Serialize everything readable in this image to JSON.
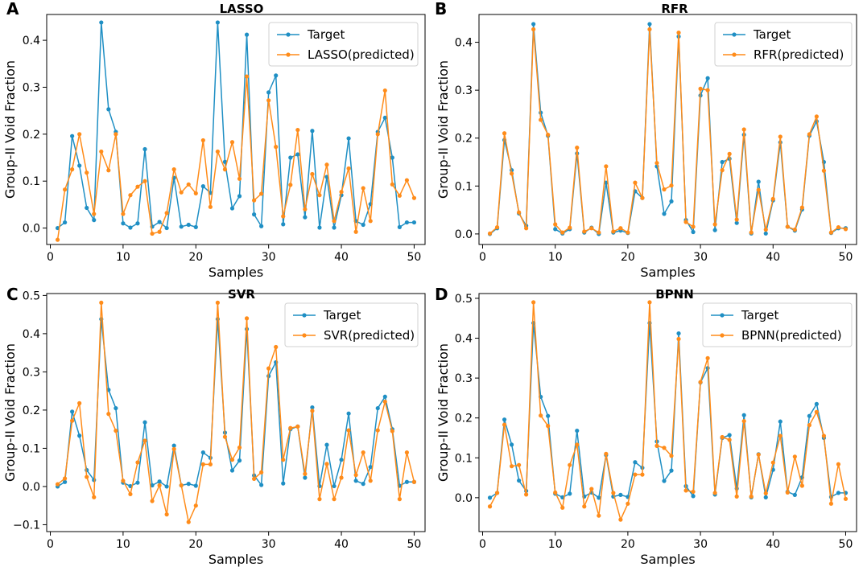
{
  "colors": {
    "target": "#1f8fc4",
    "predicted": "#ff8c1a"
  },
  "chart_data": [
    {
      "type": "line",
      "letter": "A",
      "title": "LASSO",
      "xlabel": "Samples",
      "ylabel": "Group-II Void Fraction",
      "xlim": [
        -0.5,
        51.5
      ],
      "ylim": [
        -0.035,
        0.455
      ],
      "xticks": [
        0,
        10,
        20,
        30,
        40,
        50
      ],
      "yticks": [
        0.0,
        0.1,
        0.2,
        0.3,
        0.4
      ],
      "ytick_labels": [
        "0.0",
        "0.1",
        "0.2",
        "0.3",
        "0.4"
      ],
      "legend_position": "top-right",
      "series": [
        {
          "name": "Target",
          "x": [
            1,
            2,
            3,
            4,
            5,
            6,
            7,
            8,
            9,
            10,
            11,
            12,
            13,
            14,
            15,
            16,
            17,
            18,
            19,
            20,
            21,
            22,
            23,
            24,
            25,
            26,
            27,
            28,
            29,
            30,
            31,
            32,
            33,
            34,
            35,
            36,
            37,
            38,
            39,
            40,
            41,
            42,
            43,
            44,
            45,
            46,
            47,
            48,
            49,
            50
          ],
          "values": [
            0.0,
            0.012,
            0.196,
            0.133,
            0.043,
            0.017,
            0.438,
            0.253,
            0.205,
            0.01,
            0.001,
            0.01,
            0.168,
            0.003,
            0.013,
            0.0,
            0.107,
            0.003,
            0.007,
            0.002,
            0.089,
            0.075,
            0.438,
            0.141,
            0.042,
            0.068,
            0.412,
            0.029,
            0.004,
            0.289,
            0.325,
            0.008,
            0.15,
            0.157,
            0.023,
            0.207,
            0.001,
            0.109,
            0.001,
            0.07,
            0.191,
            0.015,
            0.007,
            0.051,
            0.205,
            0.235,
            0.15,
            0.002,
            0.012,
            0.012
          ]
        },
        {
          "name": "LASSO(predicted)",
          "x": [
            1,
            2,
            3,
            4,
            5,
            6,
            7,
            8,
            9,
            10,
            11,
            12,
            13,
            14,
            15,
            16,
            17,
            18,
            19,
            20,
            21,
            22,
            23,
            24,
            25,
            26,
            27,
            28,
            29,
            30,
            31,
            32,
            33,
            34,
            35,
            36,
            37,
            38,
            39,
            40,
            41,
            42,
            43,
            44,
            45,
            46,
            47,
            48,
            49,
            50
          ],
          "values": [
            -0.025,
            0.082,
            0.125,
            0.2,
            0.118,
            0.03,
            0.163,
            0.123,
            0.2,
            0.03,
            0.07,
            0.088,
            0.1,
            -0.012,
            -0.008,
            0.032,
            0.125,
            0.076,
            0.093,
            0.074,
            0.187,
            0.045,
            0.163,
            0.125,
            0.183,
            0.105,
            0.323,
            0.059,
            0.073,
            0.272,
            0.173,
            0.025,
            0.092,
            0.209,
            0.04,
            0.115,
            0.07,
            0.135,
            0.015,
            0.077,
            0.127,
            -0.008,
            0.085,
            0.015,
            0.2,
            0.293,
            0.093,
            0.069,
            0.102,
            0.064
          ]
        }
      ]
    },
    {
      "type": "line",
      "letter": "B",
      "title": "RFR",
      "xlabel": "Samples",
      "ylabel": "Group-II Void Fraction",
      "xlim": [
        -0.5,
        51.5
      ],
      "ylim": [
        -0.022,
        0.458
      ],
      "xticks": [
        0,
        10,
        20,
        30,
        40,
        50
      ],
      "yticks": [
        0.0,
        0.1,
        0.2,
        0.3,
        0.4
      ],
      "ytick_labels": [
        "0.0",
        "0.1",
        "0.2",
        "0.3",
        "0.4"
      ],
      "legend_position": "top-right",
      "series": [
        {
          "name": "Target",
          "x": [
            1,
            2,
            3,
            4,
            5,
            6,
            7,
            8,
            9,
            10,
            11,
            12,
            13,
            14,
            15,
            16,
            17,
            18,
            19,
            20,
            21,
            22,
            23,
            24,
            25,
            26,
            27,
            28,
            29,
            30,
            31,
            32,
            33,
            34,
            35,
            36,
            37,
            38,
            39,
            40,
            41,
            42,
            43,
            44,
            45,
            46,
            47,
            48,
            49,
            50
          ],
          "values": [
            0.0,
            0.012,
            0.196,
            0.133,
            0.043,
            0.017,
            0.438,
            0.253,
            0.205,
            0.01,
            0.001,
            0.01,
            0.168,
            0.003,
            0.013,
            0.0,
            0.107,
            0.003,
            0.007,
            0.002,
            0.089,
            0.075,
            0.438,
            0.141,
            0.042,
            0.068,
            0.412,
            0.029,
            0.004,
            0.289,
            0.325,
            0.008,
            0.15,
            0.157,
            0.023,
            0.207,
            0.001,
            0.109,
            0.001,
            0.07,
            0.191,
            0.015,
            0.007,
            0.051,
            0.205,
            0.235,
            0.15,
            0.002,
            0.012,
            0.012
          ]
        },
        {
          "name": "RFR(predicted)",
          "x": [
            1,
            2,
            3,
            4,
            5,
            6,
            7,
            8,
            9,
            10,
            11,
            12,
            13,
            14,
            15,
            16,
            17,
            18,
            19,
            20,
            21,
            22,
            23,
            24,
            25,
            26,
            27,
            28,
            29,
            30,
            31,
            32,
            33,
            34,
            35,
            36,
            37,
            38,
            39,
            40,
            41,
            42,
            43,
            44,
            45,
            46,
            47,
            48,
            49,
            50
          ],
          "values": [
            0.001,
            0.014,
            0.21,
            0.126,
            0.045,
            0.012,
            0.427,
            0.238,
            0.207,
            0.02,
            0.003,
            0.013,
            0.18,
            0.005,
            0.012,
            0.003,
            0.141,
            0.005,
            0.012,
            0.003,
            0.107,
            0.075,
            0.427,
            0.148,
            0.093,
            0.101,
            0.42,
            0.025,
            0.015,
            0.303,
            0.3,
            0.02,
            0.133,
            0.167,
            0.03,
            0.218,
            0.003,
            0.092,
            0.009,
            0.073,
            0.203,
            0.015,
            0.009,
            0.055,
            0.208,
            0.245,
            0.132,
            0.003,
            0.014,
            0.01
          ]
        }
      ]
    },
    {
      "type": "line",
      "letter": "C",
      "title": "SVR",
      "xlabel": "Samples",
      "ylabel": "Group-II Void Fraction",
      "xlim": [
        -0.5,
        51.5
      ],
      "ylim": [
        -0.118,
        0.505
      ],
      "xticks": [
        0,
        10,
        20,
        30,
        40,
        50
      ],
      "yticks": [
        -0.1,
        0.0,
        0.1,
        0.2,
        0.3,
        0.4,
        0.5
      ],
      "ytick_labels": [
        "−0.1",
        "0.0",
        "0.1",
        "0.2",
        "0.3",
        "0.4",
        "0.5"
      ],
      "legend_position": "top-right",
      "series": [
        {
          "name": "Target",
          "x": [
            1,
            2,
            3,
            4,
            5,
            6,
            7,
            8,
            9,
            10,
            11,
            12,
            13,
            14,
            15,
            16,
            17,
            18,
            19,
            20,
            21,
            22,
            23,
            24,
            25,
            26,
            27,
            28,
            29,
            30,
            31,
            32,
            33,
            34,
            35,
            36,
            37,
            38,
            39,
            40,
            41,
            42,
            43,
            44,
            45,
            46,
            47,
            48,
            49,
            50
          ],
          "values": [
            0.0,
            0.012,
            0.196,
            0.133,
            0.043,
            0.017,
            0.438,
            0.253,
            0.205,
            0.01,
            0.001,
            0.01,
            0.168,
            0.003,
            0.013,
            0.0,
            0.107,
            0.003,
            0.007,
            0.002,
            0.089,
            0.075,
            0.438,
            0.141,
            0.042,
            0.068,
            0.412,
            0.029,
            0.004,
            0.289,
            0.325,
            0.008,
            0.15,
            0.157,
            0.023,
            0.207,
            0.001,
            0.109,
            0.001,
            0.07,
            0.191,
            0.015,
            0.007,
            0.051,
            0.205,
            0.235,
            0.15,
            0.002,
            0.012,
            0.012
          ]
        },
        {
          "name": "SVR(predicted)",
          "x": [
            1,
            2,
            3,
            4,
            5,
            6,
            7,
            8,
            9,
            10,
            11,
            12,
            13,
            14,
            15,
            16,
            17,
            18,
            19,
            20,
            21,
            22,
            23,
            24,
            25,
            26,
            27,
            28,
            29,
            30,
            31,
            32,
            33,
            34,
            35,
            36,
            37,
            38,
            39,
            40,
            41,
            42,
            43,
            44,
            45,
            46,
            47,
            48,
            49,
            50
          ],
          "values": [
            0.006,
            0.021,
            0.172,
            0.218,
            0.025,
            -0.028,
            0.481,
            0.19,
            0.146,
            0.015,
            -0.02,
            0.063,
            0.12,
            -0.038,
            0.003,
            -0.073,
            0.098,
            0.003,
            -0.093,
            -0.05,
            0.058,
            0.058,
            0.481,
            0.13,
            0.07,
            0.102,
            0.44,
            0.02,
            0.037,
            0.309,
            0.365,
            0.07,
            0.153,
            0.157,
            0.033,
            0.198,
            -0.033,
            0.059,
            -0.033,
            0.023,
            0.147,
            0.03,
            0.089,
            0.015,
            0.147,
            0.222,
            0.145,
            -0.033,
            0.089,
            0.012
          ]
        }
      ]
    },
    {
      "type": "line",
      "letter": "D",
      "title": "BPNN",
      "xlabel": "Samples",
      "ylabel": "Group-II Void Fraction",
      "xlim": [
        -0.5,
        51.5
      ],
      "ylim": [
        -0.085,
        0.512
      ],
      "xticks": [
        0,
        10,
        20,
        30,
        40,
        50
      ],
      "yticks": [
        0.0,
        0.1,
        0.2,
        0.3,
        0.4,
        0.5
      ],
      "ytick_labels": [
        "0.0",
        "0.1",
        "0.2",
        "0.3",
        "0.4",
        "0.5"
      ],
      "legend_position": "top-right",
      "series": [
        {
          "name": "Target",
          "x": [
            1,
            2,
            3,
            4,
            5,
            6,
            7,
            8,
            9,
            10,
            11,
            12,
            13,
            14,
            15,
            16,
            17,
            18,
            19,
            20,
            21,
            22,
            23,
            24,
            25,
            26,
            27,
            28,
            29,
            30,
            31,
            32,
            33,
            34,
            35,
            36,
            37,
            38,
            39,
            40,
            41,
            42,
            43,
            44,
            45,
            46,
            47,
            48,
            49,
            50
          ],
          "values": [
            0.0,
            0.012,
            0.196,
            0.133,
            0.043,
            0.017,
            0.438,
            0.253,
            0.205,
            0.01,
            0.001,
            0.01,
            0.168,
            0.003,
            0.013,
            0.0,
            0.107,
            0.003,
            0.007,
            0.002,
            0.089,
            0.075,
            0.438,
            0.141,
            0.042,
            0.068,
            0.412,
            0.029,
            0.004,
            0.289,
            0.325,
            0.008,
            0.15,
            0.157,
            0.023,
            0.207,
            0.001,
            0.109,
            0.001,
            0.07,
            0.191,
            0.015,
            0.007,
            0.051,
            0.205,
            0.235,
            0.15,
            0.002,
            0.012,
            0.012
          ]
        },
        {
          "name": "BPNN(predicted)",
          "x": [
            1,
            2,
            3,
            4,
            5,
            6,
            7,
            8,
            9,
            10,
            11,
            12,
            13,
            14,
            15,
            16,
            17,
            18,
            19,
            20,
            21,
            22,
            23,
            24,
            25,
            26,
            27,
            28,
            29,
            30,
            31,
            32,
            33,
            34,
            35,
            36,
            37,
            38,
            39,
            40,
            41,
            42,
            43,
            44,
            45,
            46,
            47,
            48,
            49,
            50
          ],
          "values": [
            -0.022,
            0.012,
            0.183,
            0.079,
            0.082,
            0.008,
            0.49,
            0.206,
            0.18,
            0.013,
            -0.025,
            0.082,
            0.133,
            -0.022,
            0.022,
            -0.045,
            0.11,
            0.012,
            -0.055,
            -0.015,
            0.058,
            0.058,
            0.49,
            0.13,
            0.125,
            0.105,
            0.398,
            0.018,
            0.015,
            0.29,
            0.35,
            0.012,
            0.152,
            0.145,
            0.003,
            0.192,
            0.003,
            0.108,
            0.011,
            0.088,
            0.155,
            0.013,
            0.103,
            0.03,
            0.182,
            0.215,
            0.155,
            -0.015,
            0.084,
            -0.003
          ]
        }
      ]
    }
  ]
}
